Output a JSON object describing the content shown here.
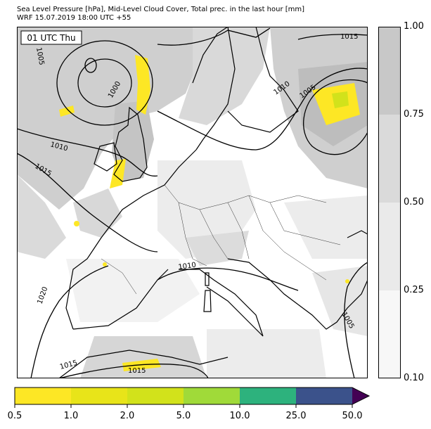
{
  "header": {
    "title_line1": "Sea Level Pressure [hPa], Mid-Level Cloud Cover, Total prec. in the last hour [mm]",
    "title_line2": "WRF 15.07.2019 18:00 UTC +55"
  },
  "map": {
    "time_label": "01 UTC Thu",
    "isobar_labels": [
      "1015",
      "1005",
      "1000",
      "1010",
      "1015",
      "1010",
      "1005",
      "1010",
      "1020",
      "1005",
      "1015",
      "1015"
    ]
  },
  "cloud_colorbar": {
    "ticks": [
      "1.00",
      "0.75",
      "0.50",
      "0.25",
      "0.10"
    ],
    "colors": [
      "#c8c8c8",
      "#dadada",
      "#eaeaea",
      "#f7f7f7"
    ]
  },
  "precip_colorbar": {
    "ticks": [
      "0.5",
      "1.0",
      "2.0",
      "5.0",
      "10.0",
      "25.0",
      "50.0"
    ],
    "colors": [
      "#fde725",
      "#e8e419",
      "#d2e21b",
      "#a0da39",
      "#2db27d",
      "#3b528b",
      "#440154"
    ]
  }
}
